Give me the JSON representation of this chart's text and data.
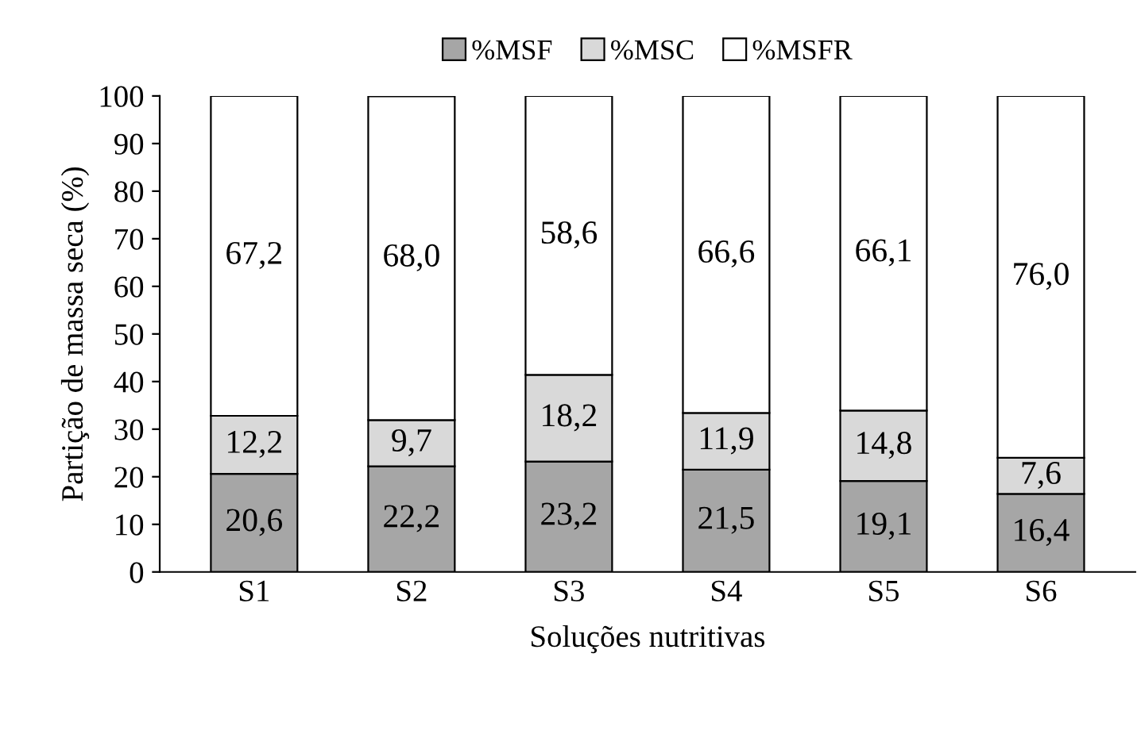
{
  "chart_data": {
    "type": "bar",
    "stacked": true,
    "xlabel": "Soluções nutritivas",
    "ylabel": "Partição de massa seca (%)",
    "categories": [
      "S1",
      "S2",
      "S3",
      "S4",
      "S5",
      "S6"
    ],
    "series": [
      {
        "name": "%MSF",
        "color": "#a6a6a6",
        "values": [
          20.6,
          22.2,
          23.2,
          21.5,
          19.1,
          16.4
        ],
        "value_labels": [
          "20,6",
          "22,2",
          "23,2",
          "21,5",
          "19,1",
          "16,4"
        ]
      },
      {
        "name": "%MSC",
        "color": "#d9d9d9",
        "values": [
          12.2,
          9.7,
          18.2,
          11.9,
          14.8,
          7.6
        ],
        "value_labels": [
          "12,2",
          "9,7",
          "18,2",
          "11,9",
          "14,8",
          "7,6"
        ]
      },
      {
        "name": "%MSFR",
        "color": "#ffffff",
        "values": [
          67.2,
          68.0,
          58.6,
          66.6,
          66.1,
          76.0
        ],
        "value_labels": [
          "67,2",
          "68,0",
          "58,6",
          "66,6",
          "66,1",
          "76,0"
        ]
      }
    ],
    "ylim": [
      0,
      100
    ],
    "yticks": [
      0,
      10,
      20,
      30,
      40,
      50,
      60,
      70,
      80,
      90,
      100
    ],
    "grid": false,
    "legend": "top"
  }
}
